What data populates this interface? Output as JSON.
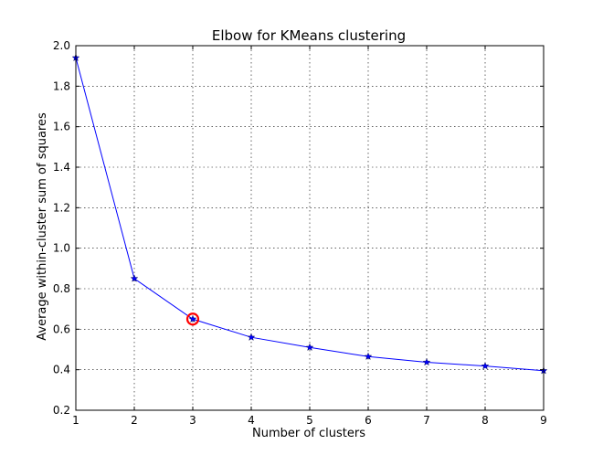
{
  "chart_data": {
    "type": "line",
    "title": "Elbow for KMeans clustering",
    "xlabel": "Number of clusters",
    "ylabel": "Average within-cluster sum of squares",
    "xlim": [
      1,
      9
    ],
    "ylim": [
      0.2,
      2.0
    ],
    "xticks": [
      "1",
      "2",
      "3",
      "4",
      "5",
      "6",
      "7",
      "8",
      "9"
    ],
    "yticks": [
      "0.2",
      "0.4",
      "0.6",
      "0.8",
      "1.0",
      "1.2",
      "1.4",
      "1.6",
      "1.8",
      "2.0"
    ],
    "grid": true,
    "series": [
      {
        "x": [
          1,
          2,
          3,
          4,
          5,
          6,
          7,
          8,
          9
        ],
        "values": [
          1.94,
          0.85,
          0.65,
          0.56,
          0.51,
          0.465,
          0.437,
          0.418,
          0.395
        ],
        "color": "#0000ff",
        "marker": "star"
      }
    ],
    "highlight": {
      "x": 3,
      "y": 0.65,
      "color": "#ff0000",
      "shape": "circle"
    }
  }
}
